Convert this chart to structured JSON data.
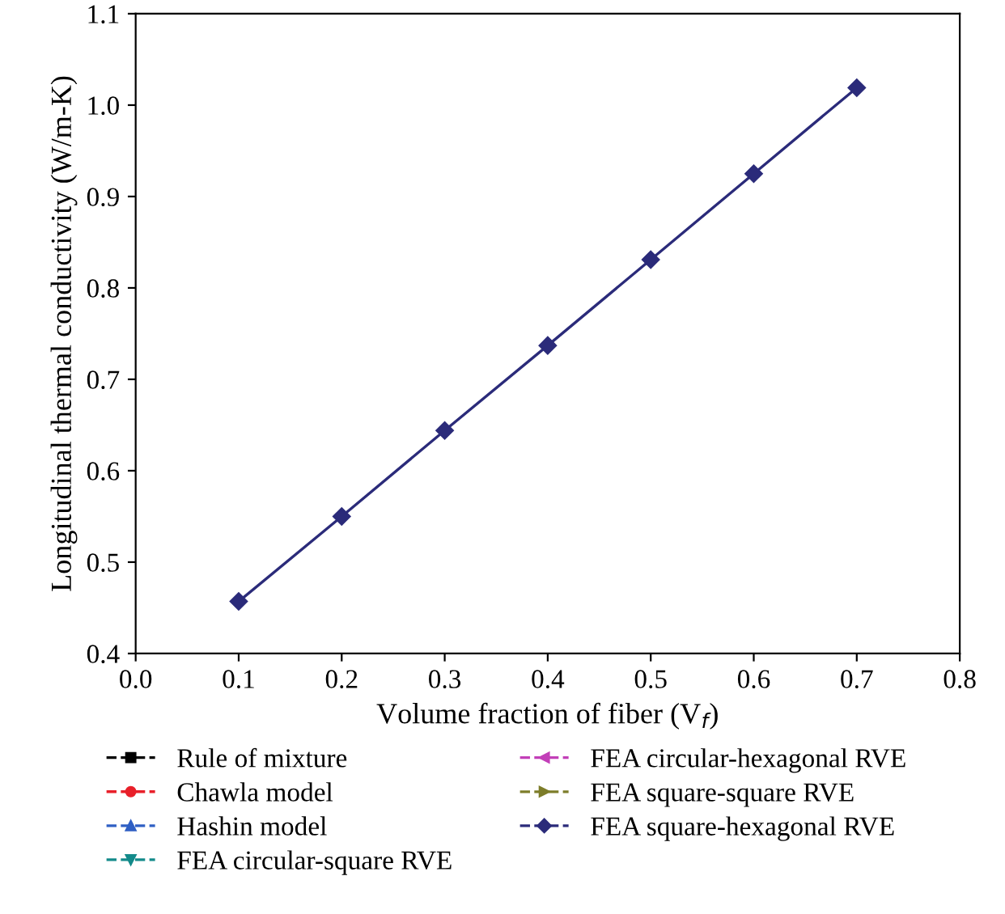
{
  "chart_data": {
    "type": "line",
    "xlabel": "Volume fraction of fiber (V$_{f}$)",
    "ylabel": "Longitudinal thermal conductivity (W/m-K)",
    "x": [
      0.1,
      0.2,
      0.3,
      0.4,
      0.5,
      0.6,
      0.7
    ],
    "series": [
      {
        "name": "Rule of mixture",
        "color": "#000000",
        "marker": "square",
        "values": [
          null,
          null,
          null,
          null,
          null,
          null,
          null
        ]
      },
      {
        "name": "Chawla model",
        "color": "#e8202a",
        "marker": "circle",
        "values": [
          null,
          null,
          null,
          null,
          null,
          null,
          null
        ]
      },
      {
        "name": "Hashin model",
        "color": "#2f5fc4",
        "marker": "triangle",
        "values": [
          null,
          null,
          null,
          null,
          null,
          null,
          null
        ]
      },
      {
        "name": "FEA circular-square RVE",
        "color": "#138a8a",
        "marker": "triangle_down",
        "values": [
          null,
          null,
          null,
          null,
          null,
          null,
          null
        ]
      },
      {
        "name": "FEA circular-hexagonal RVE",
        "color": "#c23fb8",
        "marker": "triangle_left",
        "values": [
          null,
          null,
          null,
          null,
          null,
          null,
          null
        ]
      },
      {
        "name": "FEA square-square RVE",
        "color": "#7d7d2a",
        "marker": "triangle_right",
        "values": [
          null,
          null,
          null,
          null,
          null,
          null,
          null
        ]
      },
      {
        "name": "FEA square-hexagonal RVE",
        "color": "#2b2b7a",
        "marker": "diamond",
        "values": [
          0.457,
          0.55,
          0.644,
          0.737,
          0.831,
          0.925,
          1.019
        ]
      }
    ],
    "xlim": [
      0.0,
      0.8
    ],
    "xticks": [
      {
        "value": 0.0,
        "label": "0.0"
      },
      0.1,
      0.2,
      0.3,
      0.4,
      0.5,
      0.6,
      0.7,
      0.8
    ],
    "ylim": [
      0.4,
      1.1
    ],
    "yticks": [
      0.4,
      0.5,
      0.6,
      0.7,
      0.8,
      0.9,
      {
        "value": 1.0,
        "label": "1.0"
      },
      1.1
    ],
    "line_style": "solid",
    "grid": false,
    "legend": "bottom"
  }
}
